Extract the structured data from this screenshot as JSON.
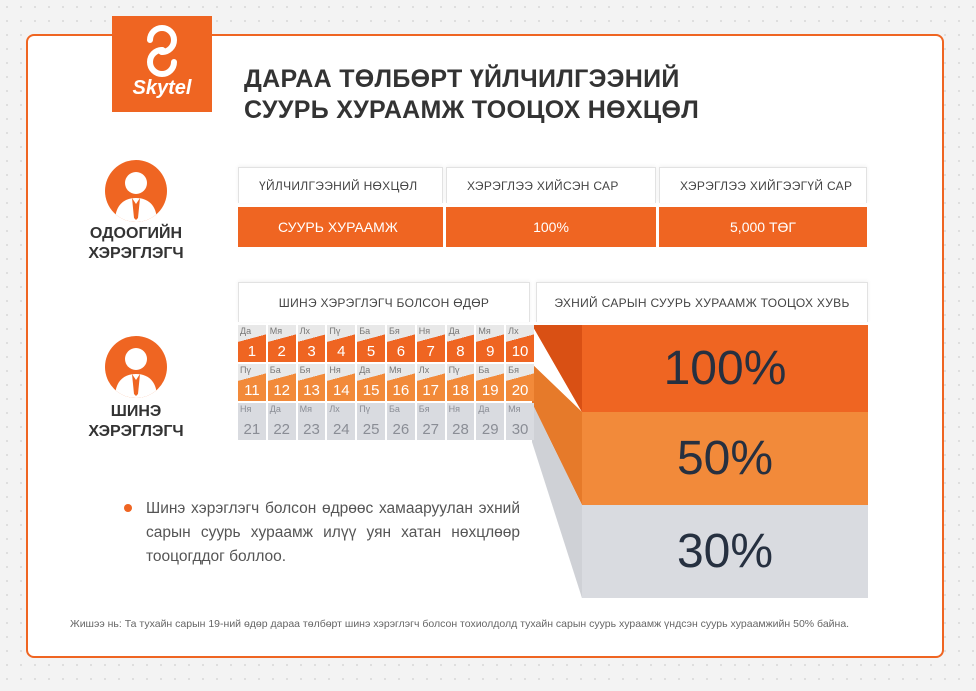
{
  "brand": {
    "name": "Skytel"
  },
  "title": {
    "line1": "ДАРАА ТӨЛБӨРТ ҮЙЛЧИЛГЭЭНИЙ",
    "line2": "СУУРЬ ХУРААМЖ ТООЦОХ НӨХЦӨЛ"
  },
  "colors": {
    "accent": "#ef6522",
    "accent_light": "#f28a3a",
    "gray": "#d9dbe0",
    "text_dark": "#263040"
  },
  "current_user": {
    "label_line1": "ОДООГИЙН",
    "label_line2": "ХЭРЭГЛЭГЧ",
    "headers": [
      "ҮЙЛЧИЛГЭЭНИЙ НӨХЦӨЛ",
      "ХЭРЭГЛЭЭ ХИЙСЭН САР",
      "ХЭРЭГЛЭЭ ХИЙГЭЭГҮЙ САР"
    ],
    "values": [
      "СУУРЬ ХУРААМЖ",
      "100%",
      "5,000 ТӨГ"
    ]
  },
  "new_user": {
    "label_line1": "ШИНЭ",
    "label_line2": "ХЭРЭГЛЭГЧ",
    "header_day": "ШИНЭ ХЭРЭГЛЭГЧ БОЛСОН ӨДӨР",
    "header_pct": "ЭХНИЙ САРЫН СУУРЬ ХУРААМЖ ТООЦОХ ХУВЬ",
    "calendar": [
      {
        "dw": "Да",
        "dn": "1"
      },
      {
        "dw": "Мя",
        "dn": "2"
      },
      {
        "dw": "Лх",
        "dn": "3"
      },
      {
        "dw": "Пү",
        "dn": "4"
      },
      {
        "dw": "Ба",
        "dn": "5"
      },
      {
        "dw": "Бя",
        "dn": "6"
      },
      {
        "dw": "Ня",
        "dn": "7"
      },
      {
        "dw": "Да",
        "dn": "8"
      },
      {
        "dw": "Мя",
        "dn": "9"
      },
      {
        "dw": "Лх",
        "dn": "10"
      },
      {
        "dw": "Пү",
        "dn": "11"
      },
      {
        "dw": "Ба",
        "dn": "12"
      },
      {
        "dw": "Бя",
        "dn": "13"
      },
      {
        "dw": "Ня",
        "dn": "14"
      },
      {
        "dw": "Да",
        "dn": "15"
      },
      {
        "dw": "Мя",
        "dn": "16"
      },
      {
        "dw": "Лх",
        "dn": "17"
      },
      {
        "dw": "Пү",
        "dn": "18"
      },
      {
        "dw": "Ба",
        "dn": "19"
      },
      {
        "dw": "Бя",
        "dn": "20"
      },
      {
        "dw": "Ня",
        "dn": "21"
      },
      {
        "dw": "Да",
        "dn": "22"
      },
      {
        "dw": "Мя",
        "dn": "23"
      },
      {
        "dw": "Лх",
        "dn": "24"
      },
      {
        "dw": "Пү",
        "dn": "25"
      },
      {
        "dw": "Ба",
        "dn": "26"
      },
      {
        "dw": "Бя",
        "dn": "27"
      },
      {
        "dw": "Ня",
        "dn": "28"
      },
      {
        "dw": "Да",
        "dn": "29"
      },
      {
        "dw": "Мя",
        "dn": "30"
      }
    ],
    "percentages": [
      "100%",
      "50%",
      "30%"
    ]
  },
  "bullet": "Шинэ хэрэглэгч болсон өдрөөс хамааруулан эхний сарын суурь хураамж илүү уян хатан нөхцлөөр тооцогддог боллоо.",
  "footnote": "Жишээ нь: Та тухайн сарын 19-ний өдөр дараа төлбөрт шинэ хэрэглэгч болсон тохиолдолд тухайн сарын суурь хураамж үндсэн суурь хураамжийн 50% байна."
}
